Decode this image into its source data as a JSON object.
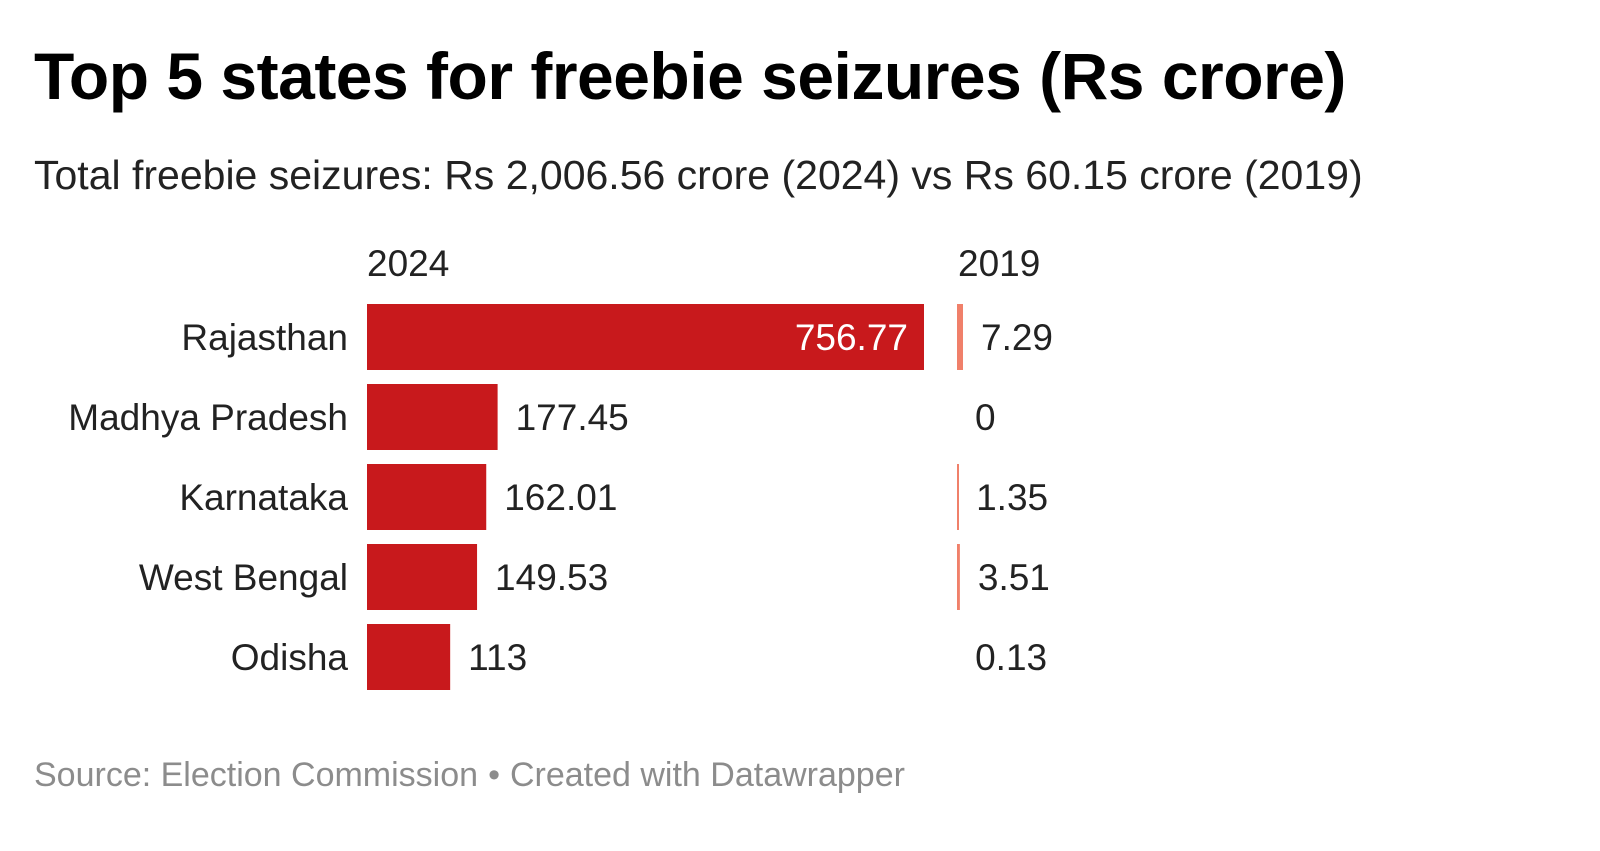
{
  "title": "Top 5 states for freebie seizures (Rs crore)",
  "subtitle": "Total freebie seizures: Rs 2,006.56 crore (2024) vs Rs 60.15 crore (2019)",
  "colors": {
    "bar_2024": "#c8191c",
    "bar_2019": "#f0806a",
    "text": "#222222",
    "footer": "#8c8c8c"
  },
  "chart_data": {
    "type": "bar",
    "orientation": "horizontal",
    "categories": [
      "Rajasthan",
      "Madhya Pradesh",
      "Karnataka",
      "West Bengal",
      "Odisha"
    ],
    "series": [
      {
        "name": "2024",
        "values": [
          756.77,
          177.45,
          162.01,
          149.53,
          113
        ],
        "labels": [
          "756.77",
          "177.45",
          "162.01",
          "149.53",
          "113"
        ]
      },
      {
        "name": "2019",
        "values": [
          7.29,
          0,
          1.35,
          3.51,
          0.13
        ],
        "labels": [
          "7.29",
          "0",
          "1.35",
          "3.51",
          "0.13"
        ]
      }
    ],
    "title": "Top 5 states for freebie seizures (Rs crore)",
    "xlabel": "",
    "ylabel": ""
  },
  "footer": {
    "source": "Source: Election Commission",
    "separator": "•",
    "credit": "Created with Datawrapper"
  }
}
